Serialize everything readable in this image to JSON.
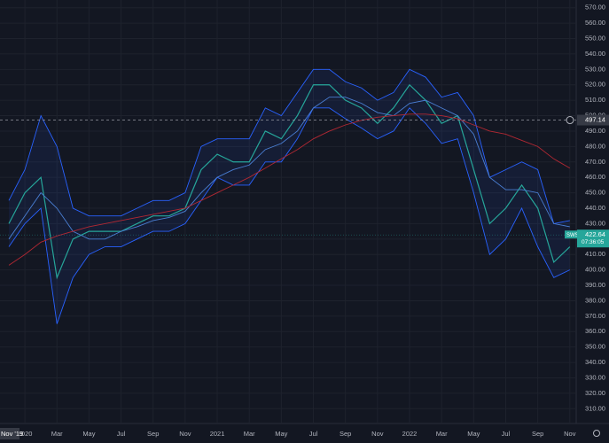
{
  "chart_data": {
    "type": "line",
    "categories": [
      null,
      "2020",
      null,
      "Mar",
      null,
      "May",
      null,
      "Jul",
      null,
      "Sep",
      null,
      "Nov",
      null,
      "2021",
      null,
      "Mar",
      null,
      "May",
      null,
      "Jul",
      null,
      "Sep",
      null,
      "Nov",
      null,
      "2022",
      null,
      "Mar",
      null,
      "May",
      null,
      "Jul",
      null,
      "Sep",
      null,
      "Nov"
    ],
    "series": [
      {
        "color": "#26a69a",
        "values": [
          430,
          450,
          460,
          395,
          420,
          425,
          425,
          425,
          430,
          435,
          435,
          440,
          465,
          475,
          470,
          470,
          490,
          485,
          500,
          520,
          520,
          510,
          505,
          495,
          505,
          520,
          510,
          495,
          500,
          465,
          430,
          440,
          455,
          440,
          405,
          415
        ]
      },
      {
        "color": "#2962ff",
        "values": [
          445,
          465,
          500,
          480,
          440,
          435,
          435,
          435,
          440,
          445,
          445,
          450,
          480,
          485,
          485,
          485,
          505,
          500,
          515,
          530,
          530,
          522,
          518,
          510,
          515,
          530,
          525,
          512,
          515,
          500,
          460,
          465,
          470,
          465,
          430,
          432
        ]
      },
      {
        "color": "#2962ff",
        "values": [
          415,
          430,
          440,
          365,
          395,
          410,
          415,
          415,
          420,
          425,
          425,
          430,
          445,
          460,
          455,
          455,
          470,
          470,
          485,
          505,
          505,
          498,
          492,
          485,
          490,
          505,
          495,
          482,
          485,
          450,
          410,
          420,
          440,
          415,
          395,
          400
        ]
      },
      {
        "color": "#4a7fd4",
        "values": [
          420,
          435,
          450,
          440,
          425,
          420,
          420,
          425,
          428,
          432,
          434,
          438,
          450,
          460,
          465,
          468,
          478,
          482,
          490,
          505,
          512,
          512,
          508,
          502,
          500,
          508,
          510,
          505,
          500,
          488,
          460,
          452,
          452,
          450,
          430,
          428
        ]
      },
      {
        "color": "#b22833",
        "values": [
          403,
          410,
          418,
          422,
          425,
          428,
          430,
          432,
          434,
          436,
          438,
          440,
          445,
          450,
          455,
          460,
          466,
          472,
          478,
          485,
          490,
          494,
          497,
          499,
          500,
          501,
          501,
          500,
          498,
          494,
          490,
          488,
          484,
          480,
          472,
          466
        ]
      }
    ],
    "fill_between": true,
    "ylim": [
      305,
      575
    ],
    "yticks": [
      {
        "value": 310,
        "label": "310.00"
      },
      {
        "value": 320,
        "label": "320.00"
      },
      {
        "value": 330,
        "label": "330.00"
      },
      {
        "value": 340,
        "label": "340.00"
      },
      {
        "value": 350,
        "label": "350.00"
      },
      {
        "value": 360,
        "label": "360.00"
      },
      {
        "value": 370,
        "label": "370.00"
      },
      {
        "value": 380,
        "label": "380.00"
      },
      {
        "value": 390,
        "label": "390.00"
      },
      {
        "value": 400,
        "label": "400.00"
      },
      {
        "value": 410,
        "label": "410.00"
      },
      {
        "value": 420,
        "label": "420.00"
      },
      {
        "value": 430,
        "label": "430.00"
      },
      {
        "value": 440,
        "label": "440.00"
      },
      {
        "value": 450,
        "label": "450.00"
      },
      {
        "value": 460,
        "label": "460.00"
      },
      {
        "value": 470,
        "label": "470.00"
      },
      {
        "value": 480,
        "label": "480.00"
      },
      {
        "value": 490,
        "label": "490.00"
      },
      {
        "value": 500,
        "label": "500.00"
      },
      {
        "value": 510,
        "label": "510.00"
      },
      {
        "value": 520,
        "label": "520.00"
      },
      {
        "value": 530,
        "label": "530.00"
      },
      {
        "value": 540,
        "label": "540.00"
      },
      {
        "value": 550,
        "label": "550.00"
      },
      {
        "value": 560,
        "label": "560.00"
      },
      {
        "value": 570,
        "label": "570.00"
      }
    ],
    "grid": true,
    "crosshair": {
      "price": 497.14,
      "date": "Nov '19"
    },
    "last_price": {
      "symbol": "SWST",
      "value": 422.64,
      "countdown": "07:36:05",
      "color": "#26a69a"
    }
  }
}
